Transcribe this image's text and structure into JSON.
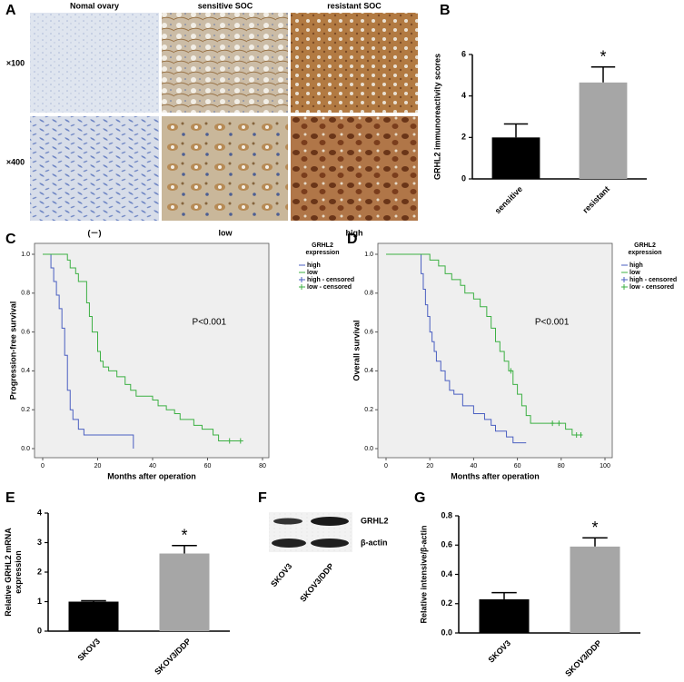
{
  "panel_letters": [
    "A",
    "B",
    "C",
    "D",
    "E",
    "F",
    "G"
  ],
  "panel_a": {
    "columns": [
      "Nomal ovary",
      "sensitive SOC",
      "resistant SOC"
    ],
    "rows": [
      "×100",
      "×400"
    ],
    "bottom_labels": [
      "(－)",
      "low",
      "high"
    ]
  },
  "panel_f": {
    "bands": [
      "GRHL2",
      "β-actin"
    ],
    "lanes": [
      "SKOV3",
      "SKOV3/DDP"
    ]
  },
  "chart_data": [
    {
      "type": "bar",
      "ylabel": "GRHL2 immunoreactivity scores",
      "categories": [
        "sensitive",
        "resistant"
      ],
      "values": [
        2.0,
        4.65
      ],
      "errors": [
        0.65,
        0.75
      ],
      "colors": [
        "#000000",
        "#a6a6a6"
      ],
      "annotation": "*",
      "ylim": [
        0,
        6
      ],
      "yticks": [
        0,
        2,
        4,
        6
      ]
    },
    {
      "type": "line",
      "ylabel": "Progression-free survival",
      "xlabel": "Months after operation",
      "annotation": "P<0.001",
      "legend_title": [
        "GRHL2",
        "expression"
      ],
      "legend": "right",
      "xlim": [
        0,
        80
      ],
      "xticks": [
        0,
        20,
        40,
        60,
        80
      ],
      "ylim": [
        0,
        1
      ],
      "yticks": [
        {
          "value": 0,
          "label": "0.0"
        },
        0.2,
        0.4,
        0.6,
        0.8,
        {
          "value": 1,
          "label": "1.0"
        }
      ],
      "series": [
        {
          "name": "high",
          "color": "#4a5fc1",
          "style": "step",
          "x": [
            0,
            3,
            3,
            4,
            4,
            5,
            5,
            6,
            6,
            7,
            7,
            8,
            8,
            9,
            9,
            10,
            10,
            11,
            11,
            13,
            13,
            15,
            15,
            33,
            33
          ],
          "values": [
            1,
            1,
            0.93,
            0.93,
            0.86,
            0.86,
            0.79,
            0.79,
            0.72,
            0.72,
            0.62,
            0.62,
            0.48,
            0.48,
            0.3,
            0.3,
            0.2,
            0.2,
            0.15,
            0.15,
            0.1,
            0.1,
            0.07,
            0.07,
            0
          ]
        },
        {
          "name": "low",
          "color": "#3cb043",
          "style": "step",
          "x": [
            0,
            9,
            9,
            10,
            10,
            12,
            12,
            13,
            13,
            16,
            16,
            17,
            17,
            18,
            18,
            20,
            20,
            21,
            21,
            22,
            22,
            24,
            24,
            27,
            27,
            30,
            30,
            32,
            32,
            34,
            34,
            40,
            40,
            42,
            42,
            45,
            45,
            48,
            48,
            50,
            50,
            55,
            55,
            58,
            58,
            62,
            62,
            64,
            64,
            73
          ],
          "values": [
            1,
            1,
            0.97,
            0.97,
            0.93,
            0.93,
            0.9,
            0.9,
            0.86,
            0.86,
            0.75,
            0.75,
            0.68,
            0.68,
            0.6,
            0.6,
            0.5,
            0.5,
            0.45,
            0.45,
            0.42,
            0.42,
            0.4,
            0.4,
            0.37,
            0.37,
            0.33,
            0.33,
            0.3,
            0.3,
            0.27,
            0.27,
            0.25,
            0.25,
            0.22,
            0.22,
            0.2,
            0.2,
            0.18,
            0.18,
            0.15,
            0.15,
            0.12,
            0.12,
            0.1,
            0.1,
            0.07,
            0.07,
            0.04,
            0.04
          ]
        },
        {
          "name": "high - censored",
          "color": "#4a5fc1",
          "style": "censor",
          "x": [],
          "values": []
        },
        {
          "name": "low - censored",
          "color": "#3cb043",
          "style": "censor",
          "x": [
            68,
            72
          ],
          "values": [
            0.04,
            0.04
          ]
        }
      ]
    },
    {
      "type": "line",
      "ylabel": "Overall survival",
      "xlabel": "Months after operation",
      "annotation": "P<0.001",
      "legend_title": [
        "GRHL2",
        "expression"
      ],
      "legend": "right",
      "xlim": [
        0,
        100
      ],
      "xticks": [
        0,
        20,
        40,
        60,
        80,
        100
      ],
      "ylim": [
        0,
        1
      ],
      "yticks": [
        {
          "value": 0,
          "label": "0.0"
        },
        0.2,
        0.4,
        0.6,
        0.8,
        {
          "value": 1,
          "label": "1.0"
        }
      ],
      "series": [
        {
          "name": "high",
          "color": "#4a5fc1",
          "style": "step",
          "x": [
            0,
            16,
            16,
            17,
            17,
            18,
            18,
            19,
            19,
            20,
            20,
            21,
            21,
            22,
            22,
            23,
            23,
            25,
            25,
            27,
            27,
            29,
            29,
            31,
            31,
            35,
            35,
            40,
            40,
            45,
            45,
            48,
            48,
            50,
            50,
            55,
            55,
            58,
            58,
            64
          ],
          "values": [
            1,
            1,
            0.9,
            0.9,
            0.82,
            0.82,
            0.74,
            0.74,
            0.68,
            0.68,
            0.6,
            0.6,
            0.55,
            0.55,
            0.5,
            0.5,
            0.45,
            0.45,
            0.4,
            0.4,
            0.35,
            0.35,
            0.3,
            0.3,
            0.28,
            0.28,
            0.22,
            0.22,
            0.18,
            0.18,
            0.15,
            0.15,
            0.12,
            0.12,
            0.09,
            0.09,
            0.06,
            0.06,
            0.03,
            0.03
          ]
        },
        {
          "name": "low",
          "color": "#3cb043",
          "style": "step",
          "x": [
            0,
            20,
            20,
            24,
            24,
            27,
            27,
            30,
            30,
            34,
            34,
            36,
            36,
            40,
            40,
            43,
            43,
            46,
            46,
            48,
            48,
            50,
            50,
            52,
            52,
            54,
            54,
            56,
            56,
            58,
            58,
            60,
            60,
            62,
            62,
            64,
            64,
            66,
            66,
            82,
            82,
            85,
            85,
            89
          ],
          "values": [
            1,
            1,
            0.97,
            0.97,
            0.94,
            0.94,
            0.9,
            0.9,
            0.87,
            0.87,
            0.84,
            0.84,
            0.8,
            0.8,
            0.77,
            0.77,
            0.73,
            0.73,
            0.68,
            0.68,
            0.62,
            0.62,
            0.55,
            0.55,
            0.5,
            0.5,
            0.45,
            0.45,
            0.4,
            0.4,
            0.33,
            0.33,
            0.28,
            0.28,
            0.22,
            0.22,
            0.17,
            0.17,
            0.13,
            0.13,
            0.1,
            0.1,
            0.07,
            0.07
          ]
        },
        {
          "name": "high - censored",
          "color": "#4a5fc1",
          "style": "censor",
          "x": [],
          "values": []
        },
        {
          "name": "low - censored",
          "color": "#3cb043",
          "style": "censor",
          "x": [
            57,
            76,
            79,
            87,
            89
          ],
          "values": [
            0.4,
            0.13,
            0.13,
            0.07,
            0.07
          ]
        }
      ]
    },
    {
      "type": "bar",
      "ylabel": [
        "Relative GRHL2 mRNA",
        "expression"
      ],
      "categories": [
        "SKOV3",
        "SKOV3/DDP"
      ],
      "values": [
        1.0,
        2.63
      ],
      "errors": [
        0.03,
        0.27
      ],
      "colors": [
        "#000000",
        "#a6a6a6"
      ],
      "annotation": "*",
      "ylim": [
        0,
        4
      ],
      "yticks": [
        0,
        1,
        2,
        3,
        4
      ]
    },
    {
      "type": "bar",
      "ylabel": "Relative intensive/β-actin",
      "categories": [
        "SKOV3",
        "SKOV3/DDP"
      ],
      "values": [
        0.23,
        0.59
      ],
      "errors": [
        0.045,
        0.06
      ],
      "colors": [
        "#000000",
        "#a6a6a6"
      ],
      "annotation": "*",
      "ylim": [
        0,
        0.8
      ],
      "yticks": [
        {
          "value": 0,
          "label": "0.0"
        },
        0.2,
        0.4,
        0.6,
        0.8
      ]
    }
  ]
}
